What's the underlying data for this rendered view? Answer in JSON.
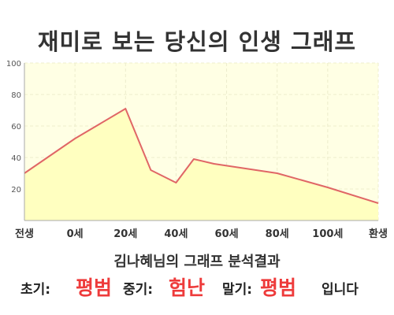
{
  "chart_data": {
    "type": "area",
    "title": "재미로 보는 당신의 인생 그래프",
    "categories": [
      "전생",
      "0세",
      "20세",
      "40세",
      "60세",
      "80세",
      "100세",
      "환생"
    ],
    "x": [
      -20,
      0,
      20,
      40,
      60,
      80,
      100,
      120
    ],
    "series": [
      {
        "values_xy": [
          [
            -20,
            30
          ],
          [
            0,
            52
          ],
          [
            20,
            71
          ],
          [
            30,
            32
          ],
          [
            40,
            24
          ],
          [
            47,
            39
          ],
          [
            55,
            36
          ],
          [
            80,
            30
          ],
          [
            100,
            21
          ],
          [
            120,
            11
          ]
        ]
      }
    ],
    "yticks": [
      20,
      40,
      60,
      80,
      100
    ],
    "ylim": [
      0,
      100
    ],
    "xlim": [
      -20,
      120
    ],
    "grid": true,
    "colors": {
      "line": "#e06666",
      "fill": "#ffffc0",
      "plot_bg": "#ffffe4",
      "grid": "#ececcc",
      "axis": "#aaaaaa"
    }
  },
  "subtitle": "김나혜님의 그래프 분석결과",
  "result": {
    "early_label": "초기:",
    "early_value": "평범",
    "mid_label": "중기:",
    "mid_value": "험난",
    "late_label": "말기:",
    "late_value": "평범",
    "ending": "입니다"
  }
}
